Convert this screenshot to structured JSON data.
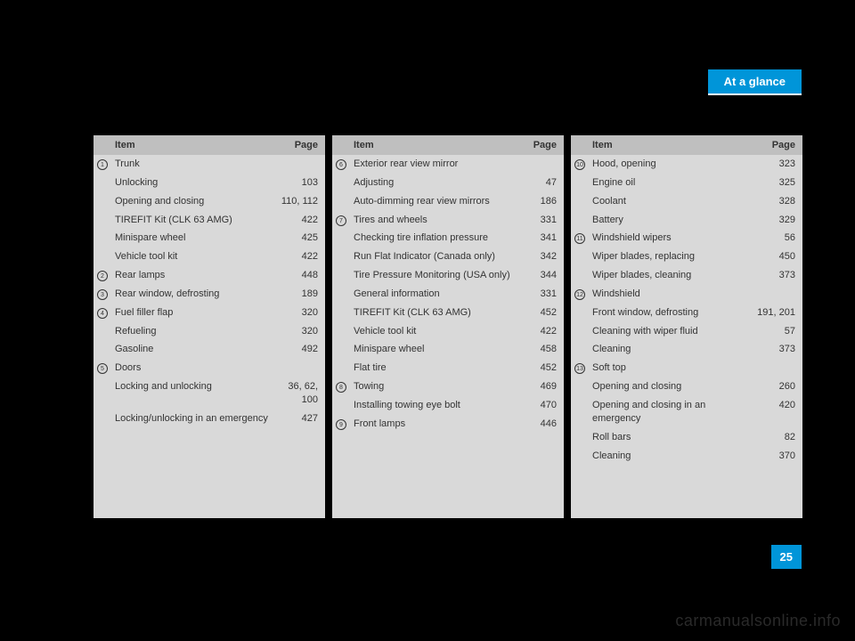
{
  "header_tab": "At a glance",
  "page_number": "25",
  "watermark": "carmanualsonline.info",
  "table_header": {
    "item": "Item",
    "page": "Page"
  },
  "columns": [
    {
      "rows": [
        {
          "num": "1",
          "item": "Trunk",
          "page": ""
        },
        {
          "num": "",
          "item": "Unlocking",
          "page": "103"
        },
        {
          "num": "",
          "item": "Opening and closing",
          "page": "110, 112"
        },
        {
          "num": "",
          "item": "TIREFIT Kit (CLK 63 AMG)",
          "page": "422"
        },
        {
          "num": "",
          "item": "Minispare wheel",
          "page": "425"
        },
        {
          "num": "",
          "item": "Vehicle tool kit",
          "page": "422"
        },
        {
          "num": "2",
          "item": "Rear lamps",
          "page": "448"
        },
        {
          "num": "3",
          "item": "Rear window, defrosting",
          "page": "189"
        },
        {
          "num": "4",
          "item": "Fuel filler flap",
          "page": "320"
        },
        {
          "num": "",
          "item": "Refueling",
          "page": "320"
        },
        {
          "num": "",
          "item": "Gasoline",
          "page": "492"
        },
        {
          "num": "5",
          "item": "Doors",
          "page": ""
        },
        {
          "num": "",
          "item": "Locking and unlocking",
          "page": "36, 62, 100"
        },
        {
          "num": "",
          "item": "Locking/unlocking in an emergency",
          "page": "427"
        }
      ],
      "min_height": 430
    },
    {
      "rows": [
        {
          "num": "6",
          "item": "Exterior rear view mirror",
          "page": ""
        },
        {
          "num": "",
          "item": "Adjusting",
          "page": "47"
        },
        {
          "num": "",
          "item": "Auto-dimming rear view mirrors",
          "page": "186"
        },
        {
          "num": "7",
          "item": "Tires and wheels",
          "page": "331"
        },
        {
          "num": "",
          "item": "Checking tire inflation pressure",
          "page": "341"
        },
        {
          "num": "",
          "item": "Run Flat Indicator (Canada only)",
          "page": "342"
        },
        {
          "num": "",
          "item": "Tire Pressure Monitoring (USA only)",
          "page": "344"
        },
        {
          "num": "",
          "item": "General information",
          "page": "331"
        },
        {
          "num": "",
          "item": "TIREFIT Kit (CLK 63 AMG)",
          "page": "452"
        },
        {
          "num": "",
          "item": "Vehicle tool kit",
          "page": "422"
        },
        {
          "num": "",
          "item": "Minispare wheel",
          "page": "458"
        },
        {
          "num": "",
          "item": "Flat tire",
          "page": "452"
        },
        {
          "num": "8",
          "item": "Towing",
          "page": "469"
        },
        {
          "num": "",
          "item": "Installing towing eye bolt",
          "page": "470"
        },
        {
          "num": "9",
          "item": "Front lamps",
          "page": "446"
        }
      ],
      "min_height": 430
    },
    {
      "rows": [
        {
          "num": "10",
          "item": "Hood, opening",
          "page": "323"
        },
        {
          "num": "",
          "item": "Engine oil",
          "page": "325"
        },
        {
          "num": "",
          "item": "Coolant",
          "page": "328"
        },
        {
          "num": "",
          "item": "Battery",
          "page": "329"
        },
        {
          "num": "11",
          "item": "Windshield wipers",
          "page": "56"
        },
        {
          "num": "",
          "item": "Wiper blades, replacing",
          "page": "450"
        },
        {
          "num": "",
          "item": "Wiper blades, cleaning",
          "page": "373"
        },
        {
          "num": "12",
          "item": "Windshield",
          "page": ""
        },
        {
          "num": "",
          "item": "Front window, defrosting",
          "page": "191, 201"
        },
        {
          "num": "",
          "item": "Cleaning with wiper fluid",
          "page": "57"
        },
        {
          "num": "",
          "item": "Cleaning",
          "page": "373"
        },
        {
          "num": "13",
          "item": "Soft top",
          "page": ""
        },
        {
          "num": "",
          "item": "Opening and closing",
          "page": "260"
        },
        {
          "num": "",
          "item": "Opening and closing in an emergency",
          "page": "420"
        },
        {
          "num": "",
          "item": "Roll bars",
          "page": "82"
        },
        {
          "num": "",
          "item": "Cleaning",
          "page": "370"
        }
      ],
      "min_height": 430
    }
  ]
}
